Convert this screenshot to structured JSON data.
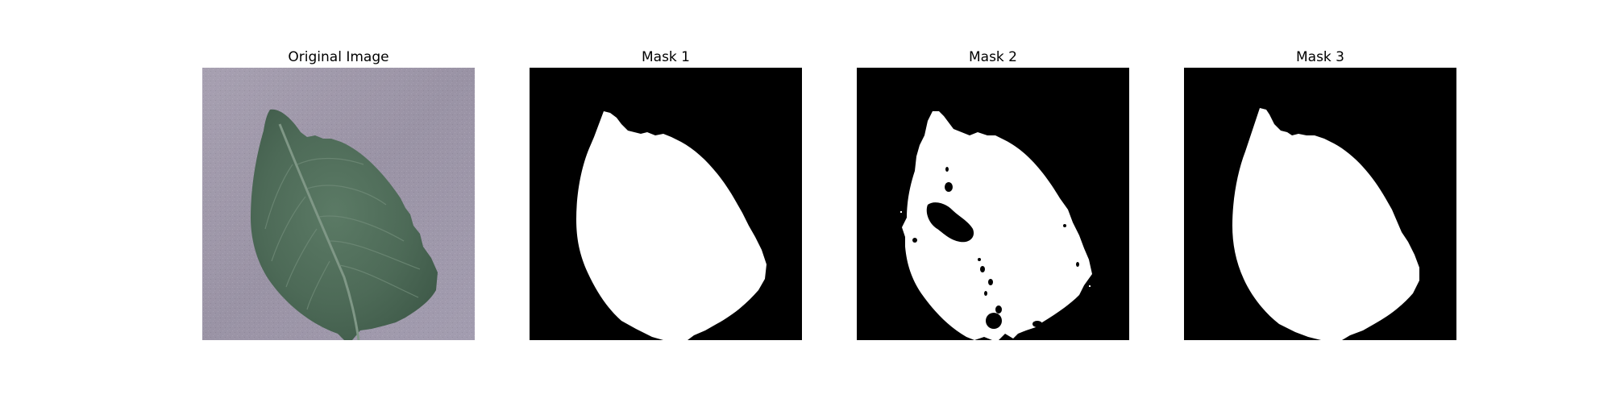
{
  "panels": [
    {
      "title": "Original Image"
    },
    {
      "title": "Mask 1"
    },
    {
      "title": "Mask 2"
    },
    {
      "title": "Mask 3"
    }
  ],
  "colors": {
    "mask_background": "#000000",
    "mask_foreground": "#ffffff",
    "photo_background": "#9e97a8",
    "leaf": "#4f6b58"
  }
}
